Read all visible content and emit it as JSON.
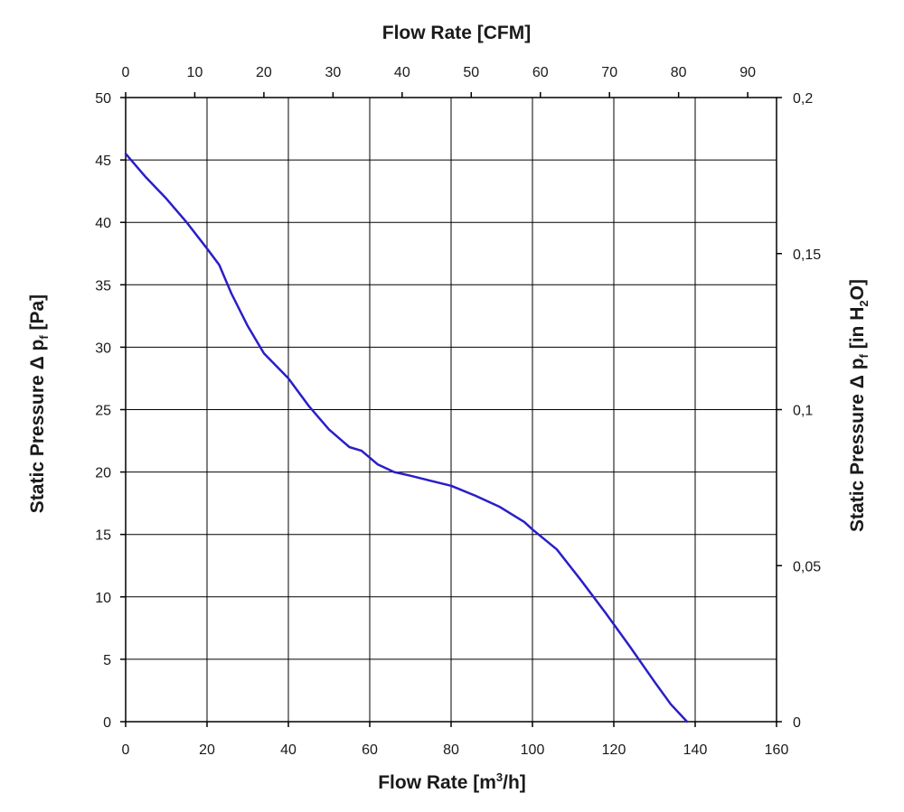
{
  "chart_data": {
    "type": "line",
    "xlabel_bottom": {
      "pre": "Flow Rate [m",
      "sup": "3",
      "post": "/h]"
    },
    "xlabel_top": "Flow Rate [CFM]",
    "ylabel_left": {
      "pre": "Static Pressure Δ p",
      "sub": "f",
      "post": " [Pa]"
    },
    "ylabel_right": {
      "pre": "Static Pressure Δ p",
      "sub": "f",
      "mid": " [in H",
      "sub2": "2",
      "post": "O]"
    },
    "x_bottom": {
      "min": 0,
      "max": 160,
      "ticks": [
        0,
        20,
        40,
        60,
        80,
        100,
        120,
        140,
        160
      ]
    },
    "x_top": {
      "min": 0,
      "max": 94.17,
      "ticks": [
        0,
        10,
        20,
        30,
        40,
        50,
        60,
        70,
        80,
        90
      ]
    },
    "y_left": {
      "min": 0,
      "max": 50,
      "ticks": [
        0,
        5,
        10,
        15,
        20,
        25,
        30,
        35,
        40,
        45,
        50
      ]
    },
    "y_right": {
      "min": 0,
      "max": 0.2,
      "ticks": [
        {
          "value": 0,
          "label": "0"
        },
        {
          "value": 0.05,
          "label": "0,05"
        },
        {
          "value": 0.1,
          "label": "0,1"
        },
        {
          "value": 0.15,
          "label": "0,15"
        },
        {
          "value": 0.2,
          "label": "0,2"
        }
      ]
    },
    "grid": true,
    "series": [
      {
        "color": "#2a1ec8",
        "x": [
          0,
          5,
          10,
          15,
          20,
          23,
          26,
          30,
          34,
          40,
          45,
          50,
          55,
          58,
          62,
          66,
          70,
          75,
          80,
          86,
          92,
          98,
          100,
          106,
          112,
          118,
          124,
          130,
          134,
          138
        ],
        "y": [
          45.5,
          43.6,
          41.9,
          40.0,
          37.9,
          36.6,
          34.3,
          31.7,
          29.5,
          27.5,
          25.3,
          23.4,
          22.0,
          21.7,
          20.6,
          20.0,
          19.7,
          19.3,
          18.9,
          18.1,
          17.2,
          16.0,
          15.4,
          13.8,
          11.3,
          8.7,
          6.0,
          3.2,
          1.4,
          0.0
        ]
      }
    ]
  }
}
